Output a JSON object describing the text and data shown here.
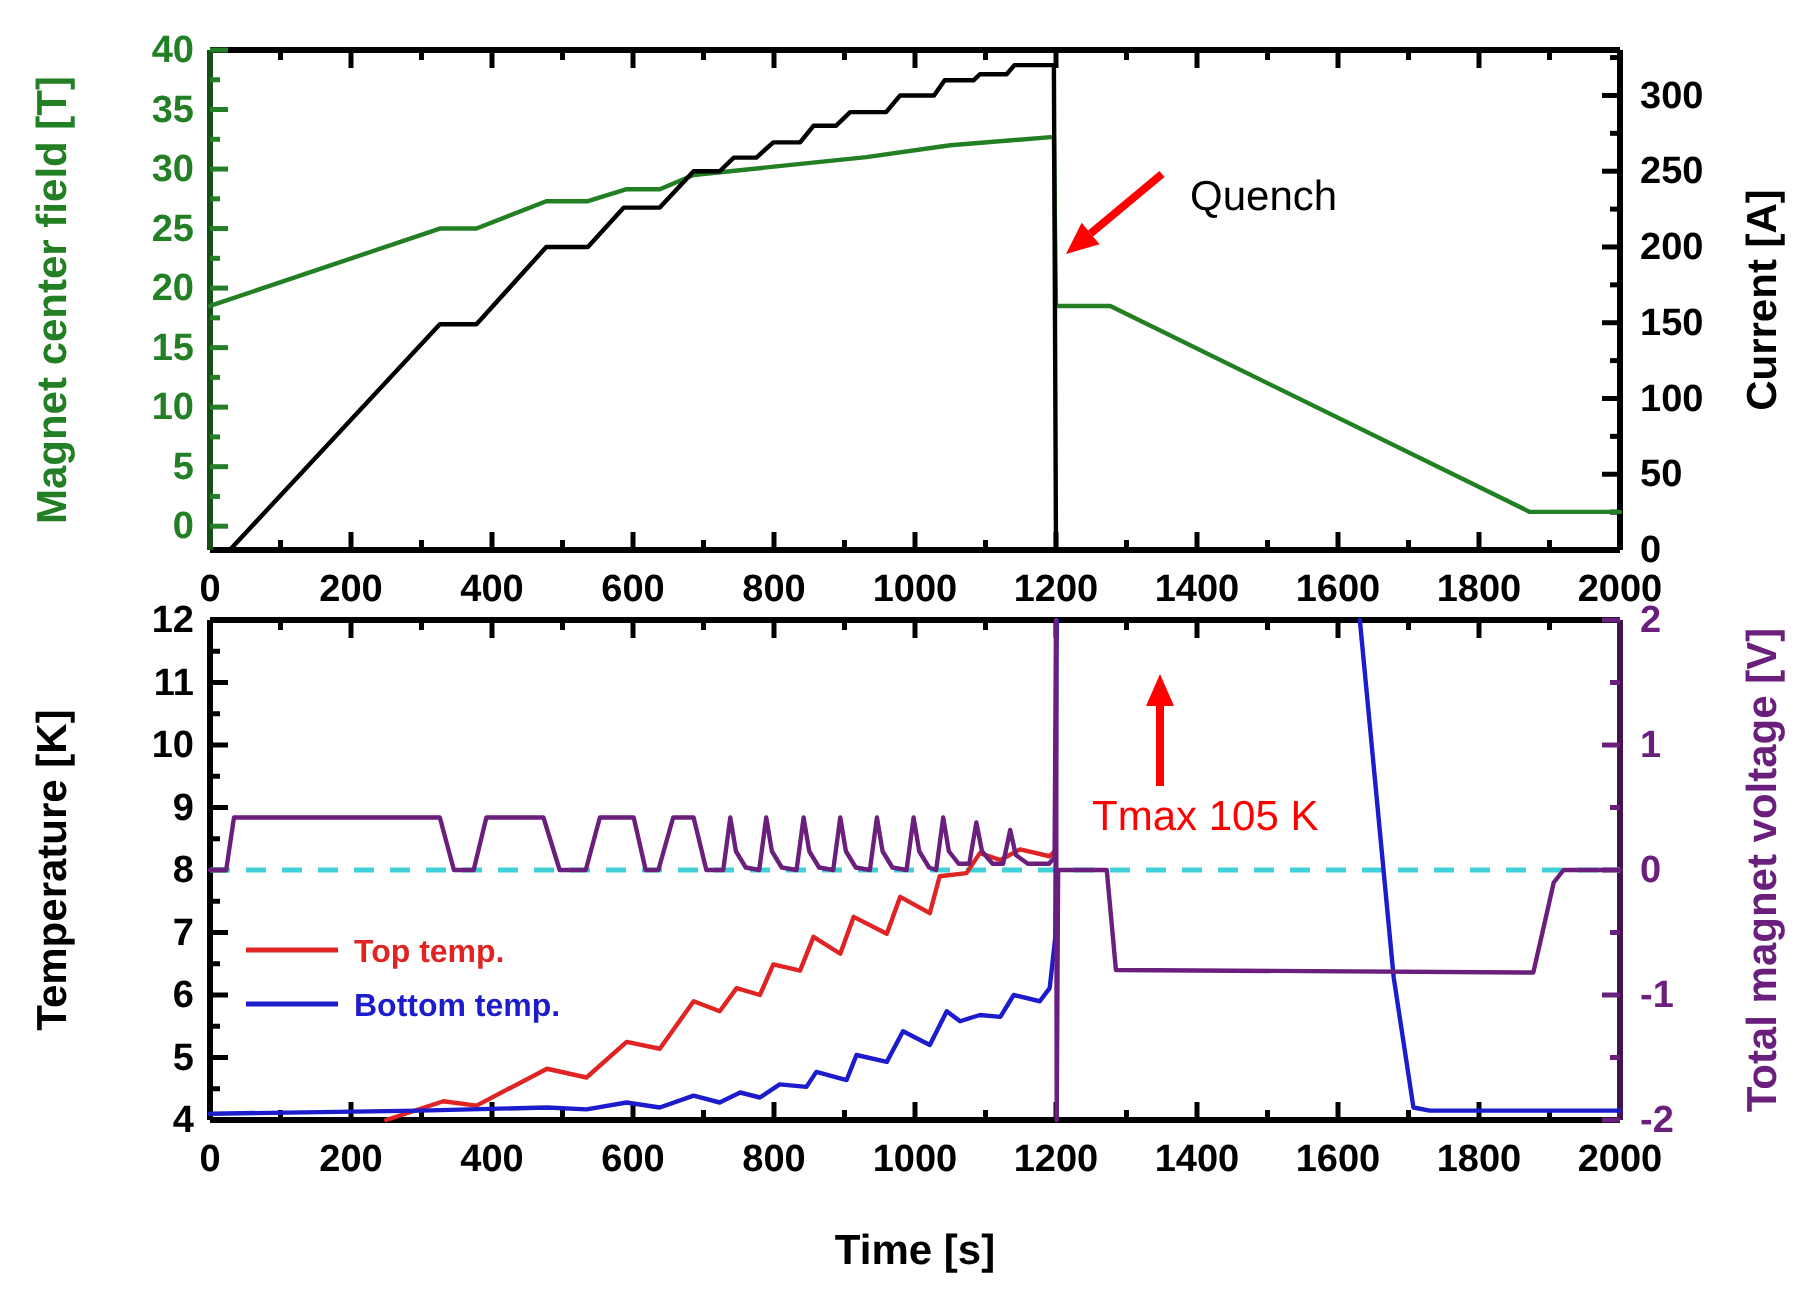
{
  "chart_data": [
    {
      "type": "line",
      "ylabel": "Magnet center field [T]",
      "y2label": "Current [A]",
      "xlim": [
        0,
        2000
      ],
      "xticks": [
        0,
        {
          "value": 100,
          "label": null
        },
        200,
        {
          "value": 300,
          "label": null
        },
        400,
        {
          "value": 500,
          "label": null
        },
        600,
        {
          "value": 700,
          "label": null
        },
        800,
        {
          "value": 900,
          "label": null
        },
        1000,
        {
          "value": 1100,
          "label": null
        },
        1200,
        {
          "value": 1300,
          "label": null
        },
        1400,
        {
          "value": 1500,
          "label": null
        },
        1600,
        {
          "value": 1700,
          "label": null
        },
        1800,
        {
          "value": 1900,
          "label": null
        },
        2000
      ],
      "ylim": [
        -2,
        40
      ],
      "yticks": [
        0,
        {
          "value": 2.5,
          "label": null
        },
        5,
        {
          "value": 7.5,
          "label": null
        },
        10,
        {
          "value": 12.5,
          "label": null
        },
        15,
        {
          "value": 17.5,
          "label": null
        },
        20,
        {
          "value": 22.5,
          "label": null
        },
        25,
        {
          "value": 27.5,
          "label": null
        },
        30,
        {
          "value": 32.5,
          "label": null
        },
        35,
        {
          "value": 37.5,
          "label": null
        },
        40
      ],
      "y2lim": [
        0,
        330
      ],
      "y2ticks": [
        0,
        {
          "value": 25,
          "label": null
        },
        50,
        {
          "value": 75,
          "label": null
        },
        100,
        {
          "value": 125,
          "label": null
        },
        150,
        {
          "value": 175,
          "label": null
        },
        200,
        {
          "value": 225,
          "label": null
        },
        250,
        {
          "value": 275,
          "label": null
        },
        300,
        {
          "value": 325,
          "label": null
        }
      ],
      "series": [
        {
          "color": "#237f23",
          "x": [
            0,
            326,
            378,
            477,
            536,
            590,
            638,
            686,
            800,
            931,
            1050,
            1197,
            1200,
            1277,
            1872,
            2000
          ],
          "values": [
            18.5,
            25,
            25,
            27.3,
            27.3,
            28.3,
            28.3,
            29.5,
            30.2,
            31,
            32,
            32.7,
            18.5,
            18.5,
            1.2,
            1.2
          ]
        },
        {
          "color": "#000000",
          "axis": "y2",
          "x": [
            28,
            326,
            378,
            477,
            536,
            587,
            638,
            686,
            723,
            743,
            775,
            799,
            837,
            856,
            888,
            908,
            959,
            979,
            1027,
            1042,
            1083,
            1092,
            1130,
            1141,
            1197,
            1200
          ],
          "values": [
            0,
            149,
            149,
            200,
            200,
            226,
            226,
            250,
            250,
            259,
            259,
            269,
            269,
            280,
            280,
            289,
            289,
            300,
            300,
            310,
            310,
            314,
            314,
            320,
            320,
            0
          ]
        }
      ],
      "annotations": [
        "Quench"
      ]
    },
    {
      "type": "line",
      "xlabel": "Time [s]",
      "ylabel": "Temperature [K]",
      "y2label": "Total magnet voltage [V]",
      "xlim": [
        0,
        2000
      ],
      "xticks": [
        0,
        {
          "value": 100,
          "label": null
        },
        200,
        {
          "value": 300,
          "label": null
        },
        400,
        {
          "value": 500,
          "label": null
        },
        600,
        {
          "value": 700,
          "label": null
        },
        800,
        {
          "value": 900,
          "label": null
        },
        1000,
        {
          "value": 1100,
          "label": null
        },
        1200,
        {
          "value": 1300,
          "label": null
        },
        1400,
        {
          "value": 1500,
          "label": null
        },
        1600,
        {
          "value": 1700,
          "label": null
        },
        1800,
        {
          "value": 1900,
          "label": null
        },
        2000
      ],
      "ylim": [
        4,
        12
      ],
      "yticks": [
        4,
        {
          "value": 4.5,
          "label": null
        },
        5,
        {
          "value": 5.5,
          "label": null
        },
        6,
        {
          "value": 6.5,
          "label": null
        },
        7,
        {
          "value": 7.5,
          "label": null
        },
        8,
        {
          "value": 8.5,
          "label": null
        },
        9,
        {
          "value": 9.5,
          "label": null
        },
        10,
        {
          "value": 10.5,
          "label": null
        },
        11,
        {
          "value": 11.5,
          "label": null
        },
        12
      ],
      "y2lim": [
        -2,
        2
      ],
      "y2ticks": [
        -2,
        {
          "value": -1.5,
          "label": null
        },
        -1,
        {
          "value": -0.5,
          "label": null
        },
        0,
        {
          "value": 0.5,
          "label": null
        },
        1,
        {
          "value": 1.5,
          "label": null
        },
        2
      ],
      "legend": "left",
      "series": [
        {
          "name": "Top temp.",
          "color": "#e02424",
          "x": [
            250,
            331,
            378,
            478,
            534,
            591,
            638,
            686,
            723,
            747,
            780,
            799,
            837,
            856,
            894,
            913,
            960,
            979,
            1021,
            1035,
            1073,
            1092,
            1121,
            1149,
            1191,
            1198
          ],
          "values": [
            4.0,
            4.3,
            4.23,
            4.82,
            4.68,
            5.25,
            5.14,
            5.9,
            5.74,
            6.11,
            6.0,
            6.49,
            6.39,
            6.93,
            6.66,
            7.25,
            6.98,
            7.57,
            7.31,
            7.9,
            7.95,
            8.27,
            8.16,
            8.33,
            8.22,
            8.3
          ]
        },
        {
          "name": "Bottom temp.",
          "color": "#1c1ccc",
          "x": [
            0,
            298,
            478,
            534,
            591,
            638,
            686,
            723,
            752,
            780,
            808,
            846,
            860,
            903,
            917,
            960,
            983,
            1021,
            1045,
            1064,
            1092,
            1121,
            1140,
            1177,
            1191,
            1199,
            1201,
            1400,
            1631,
            1679,
            1707,
            1730,
            2000
          ],
          "values": [
            4.1,
            4.15,
            4.2,
            4.17,
            4.28,
            4.2,
            4.39,
            4.28,
            4.44,
            4.36,
            4.57,
            4.53,
            4.77,
            4.64,
            5.04,
            4.93,
            5.42,
            5.2,
            5.74,
            5.58,
            5.68,
            5.65,
            6.0,
            5.9,
            6.11,
            6.92,
            12,
            null,
            12,
            6.28,
            4.2,
            4.15,
            4.15
          ]
        },
        {
          "color": "#6b1f7c",
          "axis": "y2",
          "x": [
            0,
            23,
            34,
            326,
            346,
            374,
            392,
            473,
            496,
            533,
            553,
            601,
            618,
            636,
            657,
            686,
            704,
            728,
            738,
            746,
            760,
            779,
            789,
            797,
            811,
            832,
            842,
            850,
            864,
            884,
            894,
            902,
            916,
            936,
            946,
            954,
            968,
            988,
            998,
            1006,
            1020,
            1030,
            1040,
            1048,
            1062,
            1077,
            1087,
            1095,
            1110,
            1125,
            1135,
            1143,
            1160,
            1190,
            1198,
            1200,
            1201,
            1203,
            1272,
            1285,
            1877,
            1890,
            1906,
            1920,
            2000
          ],
          "values": [
            0,
            0,
            0.42,
            0.42,
            0,
            0,
            0.42,
            0.42,
            0,
            0,
            0.42,
            0.42,
            0,
            0,
            0.42,
            0.42,
            0,
            0,
            0.42,
            0.15,
            0.02,
            0,
            0.42,
            0.15,
            0.02,
            0,
            0.42,
            0.15,
            0.02,
            0,
            0.42,
            0.15,
            0.02,
            0,
            0.42,
            0.15,
            0.02,
            0,
            0.42,
            0.15,
            0.02,
            0,
            0.42,
            0.15,
            0.05,
            0.05,
            0.38,
            0.15,
            0.05,
            0.05,
            0.32,
            0.12,
            0.05,
            0.05,
            0.1,
            2,
            -2,
            0,
            0,
            -0.8,
            -0.82,
            -0.5,
            -0.1,
            0,
            0
          ]
        }
      ],
      "ref_lines": [
        {
          "axis": "y2",
          "value": 0,
          "color": "#40d0d8",
          "line_style": "dashed"
        }
      ],
      "annotations": [
        "Tmax 105 K"
      ]
    }
  ]
}
